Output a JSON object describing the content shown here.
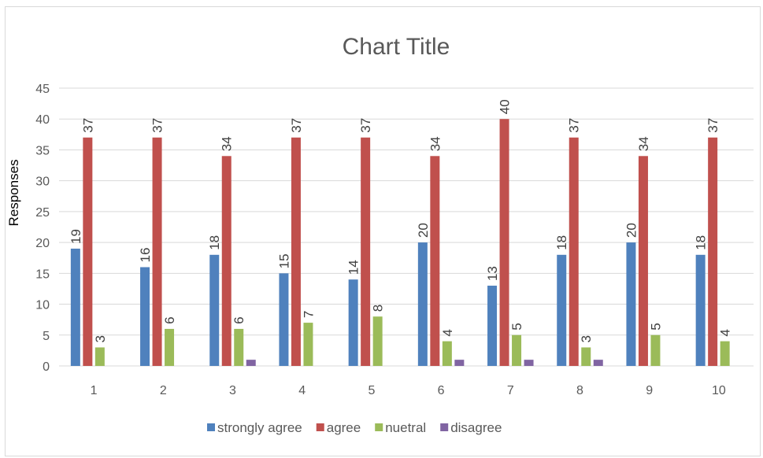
{
  "chart_data": {
    "type": "bar",
    "title": "Chart Title",
    "xlabel": "",
    "ylabel": "Responses",
    "categories": [
      "1",
      "2",
      "3",
      "4",
      "5",
      "6",
      "7",
      "8",
      "9",
      "10"
    ],
    "series": [
      {
        "name": "strongly agree",
        "color": "#4f81bd",
        "values": [
          19,
          16,
          18,
          15,
          14,
          20,
          13,
          18,
          20,
          18
        ]
      },
      {
        "name": "agree",
        "color": "#c0504d",
        "values": [
          37,
          37,
          34,
          37,
          37,
          34,
          40,
          37,
          34,
          37
        ]
      },
      {
        "name": "nuetral",
        "color": "#9bbb59",
        "values": [
          3,
          6,
          6,
          7,
          8,
          4,
          5,
          3,
          5,
          4
        ]
      },
      {
        "name": "disagree",
        "color": "#8064a2",
        "values": [
          0,
          0,
          1,
          0,
          0,
          1,
          1,
          1,
          0,
          0
        ]
      }
    ],
    "data_labels": {
      "strongly agree": [
        "19",
        "16",
        "18",
        "15",
        "14",
        "20",
        "13",
        "18",
        "20",
        "18"
      ],
      "agree": [
        "37",
        "37",
        "34",
        "37",
        "37",
        "34",
        "40",
        "37",
        "34",
        "37"
      ],
      "nuetral": [
        "3",
        "6",
        "6",
        "7",
        "8",
        "4",
        "5",
        "3",
        "5",
        "4"
      ]
    },
    "ylim": [
      0,
      45
    ],
    "yticks": [
      "0",
      "5",
      "10",
      "15",
      "20",
      "25",
      "30",
      "35",
      "40",
      "45"
    ],
    "grid": true,
    "legend_position": "bottom"
  }
}
